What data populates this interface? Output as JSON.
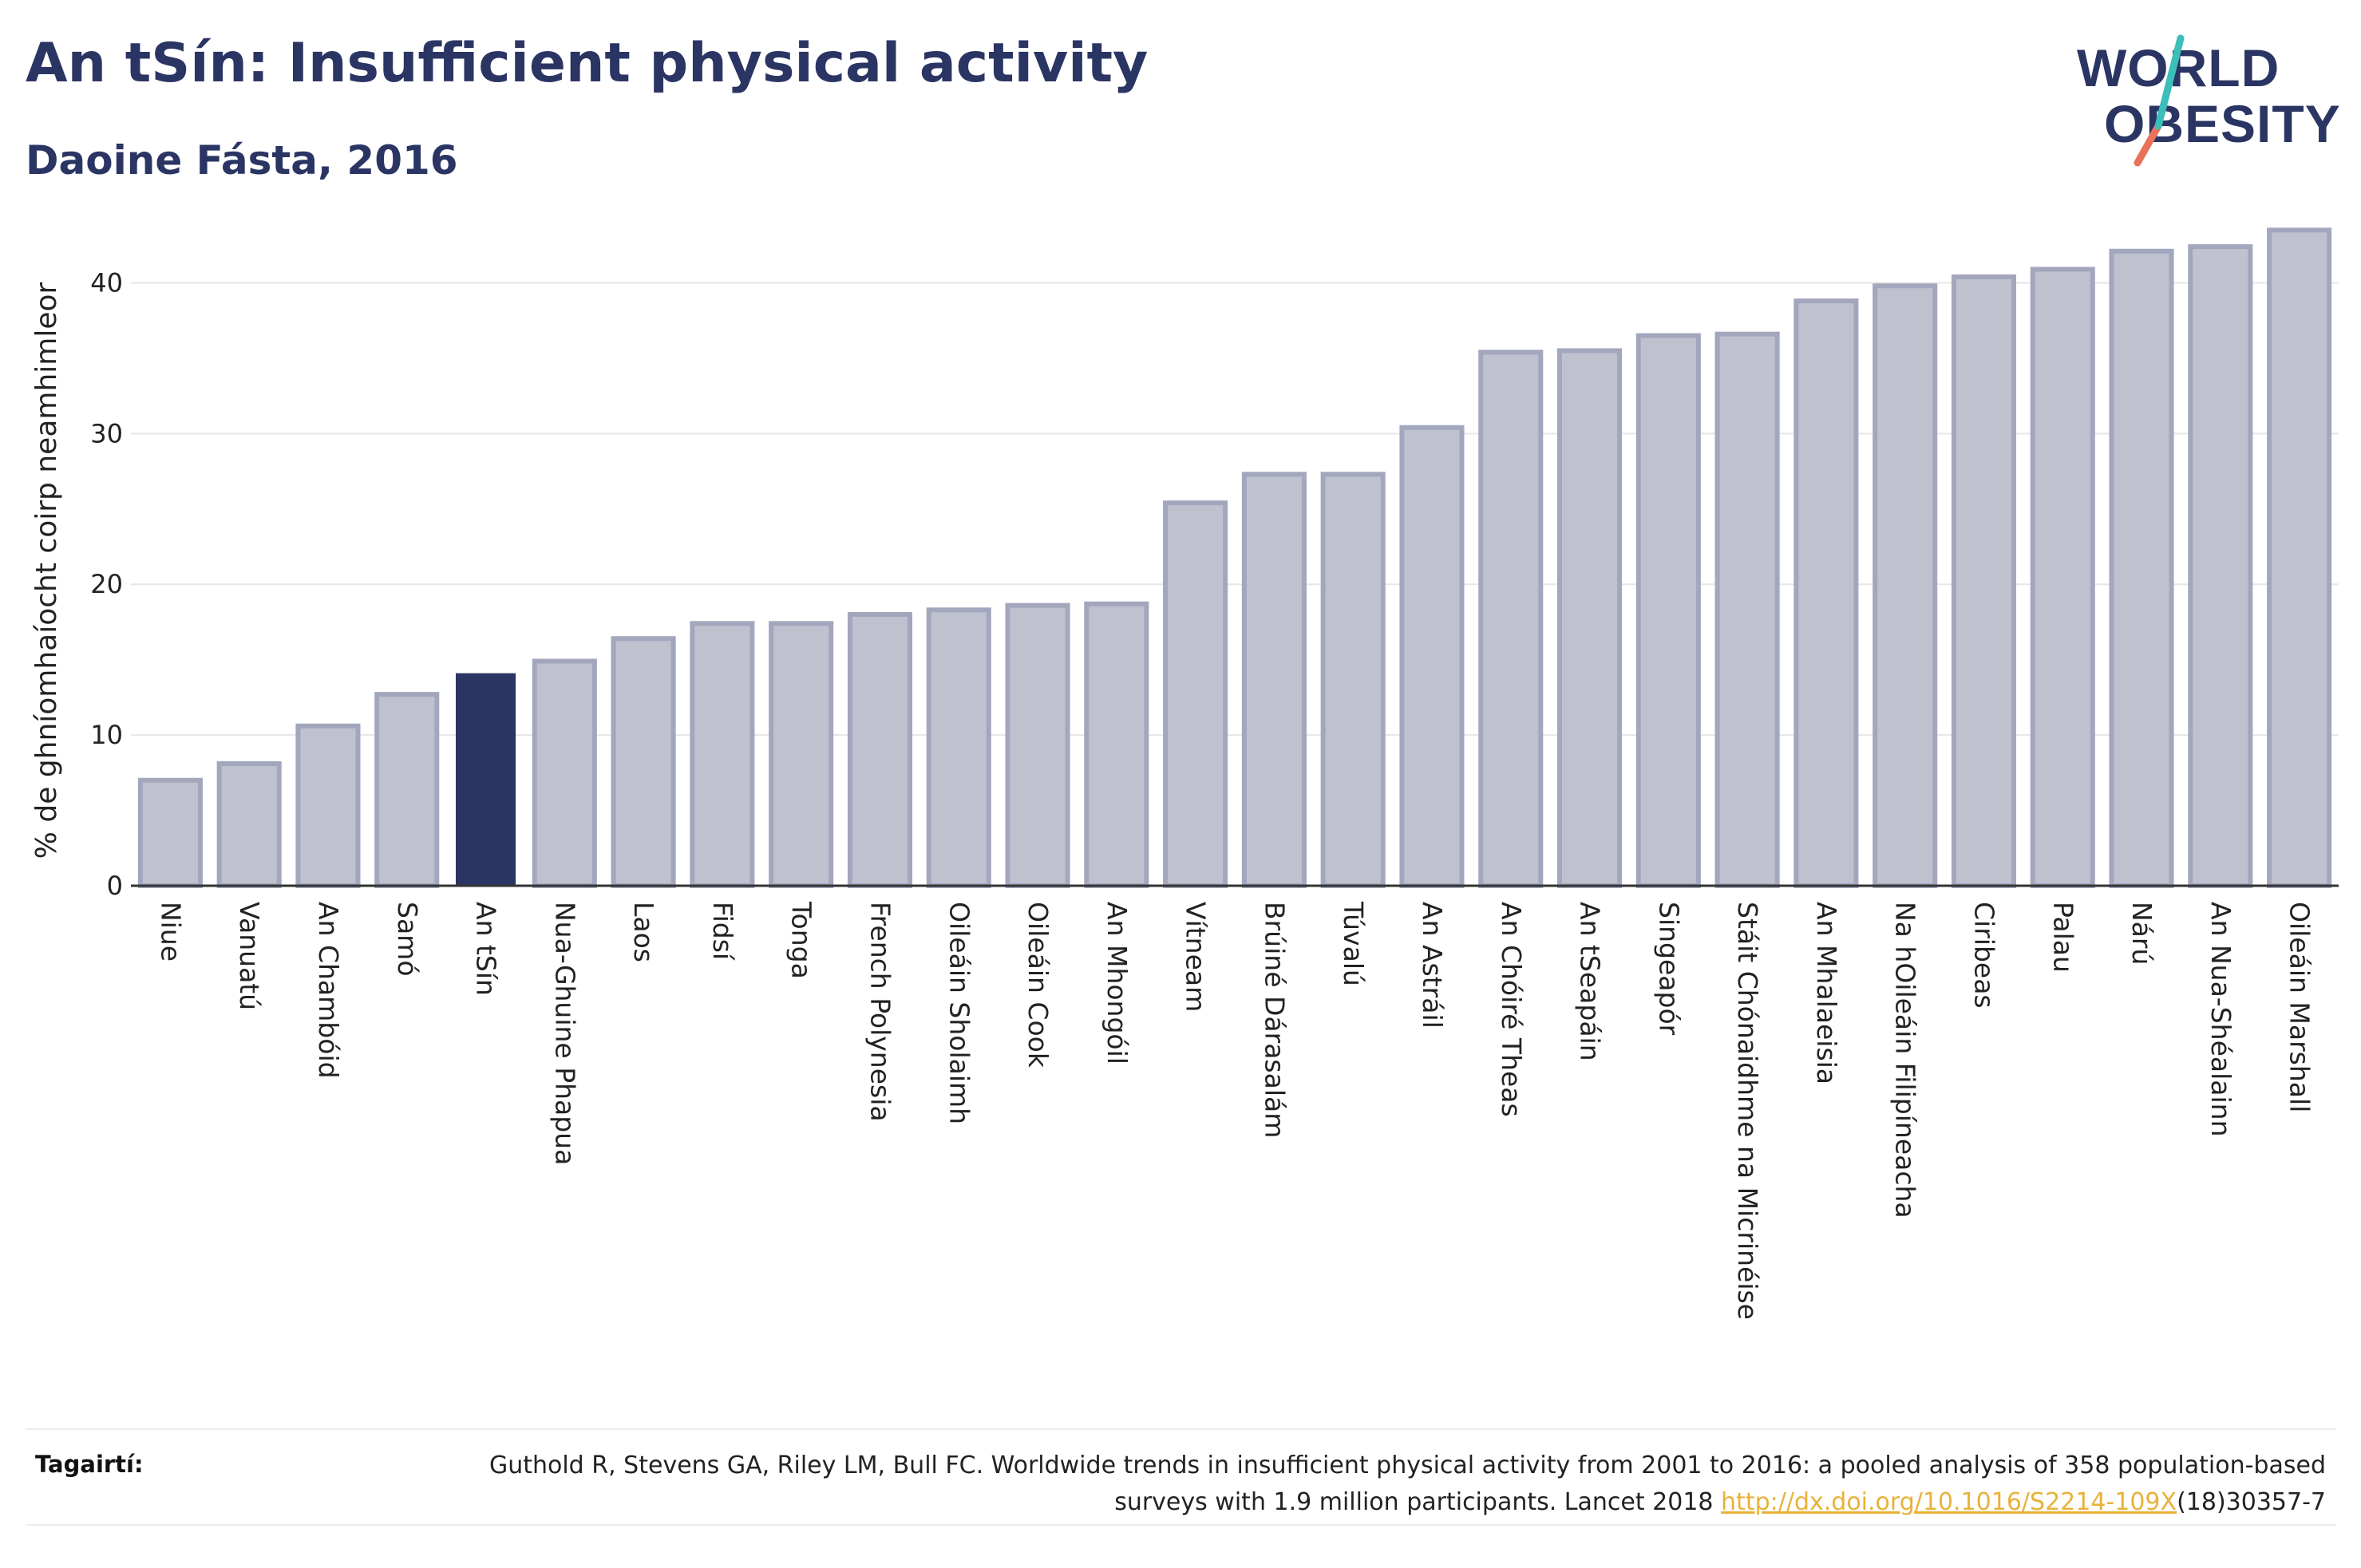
{
  "header": {
    "title": "An tSín: Insufficient physical activity",
    "subtitle": "Daoine Fásta, 2016"
  },
  "logo": {
    "line1": "WORLD",
    "line2": "OBESITY"
  },
  "colors": {
    "title": "#2b3564",
    "highlight_bar": "#2b3564",
    "normal_bar": "#bfc1cf",
    "normal_bar_border": "#a3a7bd",
    "gridline": "#e6e6e6",
    "link": "#e8b23a",
    "logo_teal": "#3bbfb8",
    "logo_coral": "#e8725a"
  },
  "chart_data": {
    "type": "bar",
    "title": "An tSín: Insufficient physical activity",
    "subtitle": "Daoine Fásta, 2016",
    "ylabel": "% de ghníomhaíocht coirp neamhimleor",
    "xlabel": "",
    "ylim": [
      0,
      45
    ],
    "yticks": [
      0,
      10,
      20,
      30,
      40
    ],
    "grid": true,
    "highlight": "An tSín",
    "categories": [
      "Niue",
      "Vanuatú",
      "An Chambóid",
      "Samó",
      "An tSín",
      "Nua-Ghuine Phapua",
      "Laos",
      "Fidsí",
      "Tonga",
      "French Polynesia",
      "Oileáin Sholaimh",
      "Oileáin Cook",
      "An Mhongóil",
      "Vítneam",
      "Brúiné Dárasalám",
      "Túvalú",
      "An Astráil",
      "An Chóiré Theas",
      "An tSeapáin",
      "Singeapór",
      "Stáit Chónaidhme na Micrinéise",
      "An Mhalaeisia",
      "Na hOileáin Filipíneacha",
      "Ciribeas",
      "Palau",
      "Nárú",
      "An Nua-Shéalainn",
      "Oileáin Marshall"
    ],
    "values": [
      7.0,
      8.1,
      10.6,
      12.7,
      14.1,
      14.9,
      16.4,
      17.4,
      17.4,
      18.0,
      18.3,
      18.6,
      18.7,
      25.4,
      27.3,
      27.3,
      30.4,
      35.4,
      35.5,
      36.5,
      36.6,
      38.8,
      39.8,
      40.4,
      40.9,
      42.1,
      42.4,
      43.5
    ]
  },
  "references": {
    "label": "Tagairtí:",
    "text_before_link": "Guthold R, Stevens GA, Riley LM, Bull FC. Worldwide trends in insufficient physical activity from 2001 to 2016: a pooled analysis of 358 population-based surveys with 1.9 million participants. Lancet 2018 ",
    "link_text": "http://dx.doi.org/10.1016/S2214-109X",
    "text_after_link": "(18)30357-7"
  }
}
